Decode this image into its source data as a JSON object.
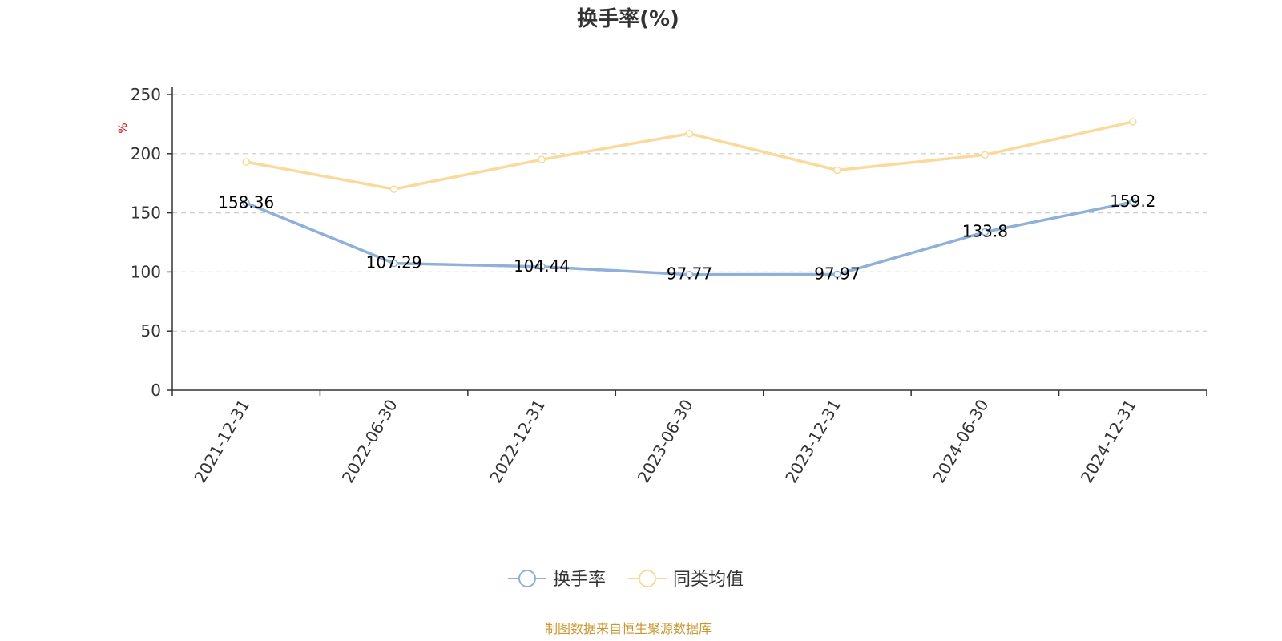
{
  "chart_data": {
    "type": "line",
    "title": "换手率(%)",
    "ylabel": "%",
    "xlabel": "",
    "ylim": [
      0,
      250
    ],
    "yticks": [
      0,
      50,
      100,
      150,
      200,
      250
    ],
    "grid": true,
    "legend_position": "bottom-center",
    "categories": [
      "2021-12-31",
      "2022-06-30",
      "2022-12-31",
      "2023-06-30",
      "2023-12-31",
      "2024-06-30",
      "2024-12-31"
    ],
    "series": [
      {
        "name": "换手率",
        "color": "#8eb0d9",
        "values": [
          158.36,
          107.29,
          104.44,
          97.77,
          97.97,
          133.8,
          159.2
        ],
        "labels": [
          "158.36",
          "107.29",
          "104.44",
          "97.77",
          "97.97",
          "133.8",
          "159.2"
        ],
        "show_labels": true
      },
      {
        "name": "同类均值",
        "color": "#fbd99a",
        "values": [
          193,
          170,
          195,
          217,
          186,
          199,
          227
        ],
        "show_labels": false
      }
    ]
  },
  "footer": {
    "source": "制图数据来自恒生聚源数据库",
    "source_color": "#c8972f"
  },
  "colors": {
    "axis": "#333333",
    "grid": "#cccccc",
    "unit": "#e00000"
  }
}
